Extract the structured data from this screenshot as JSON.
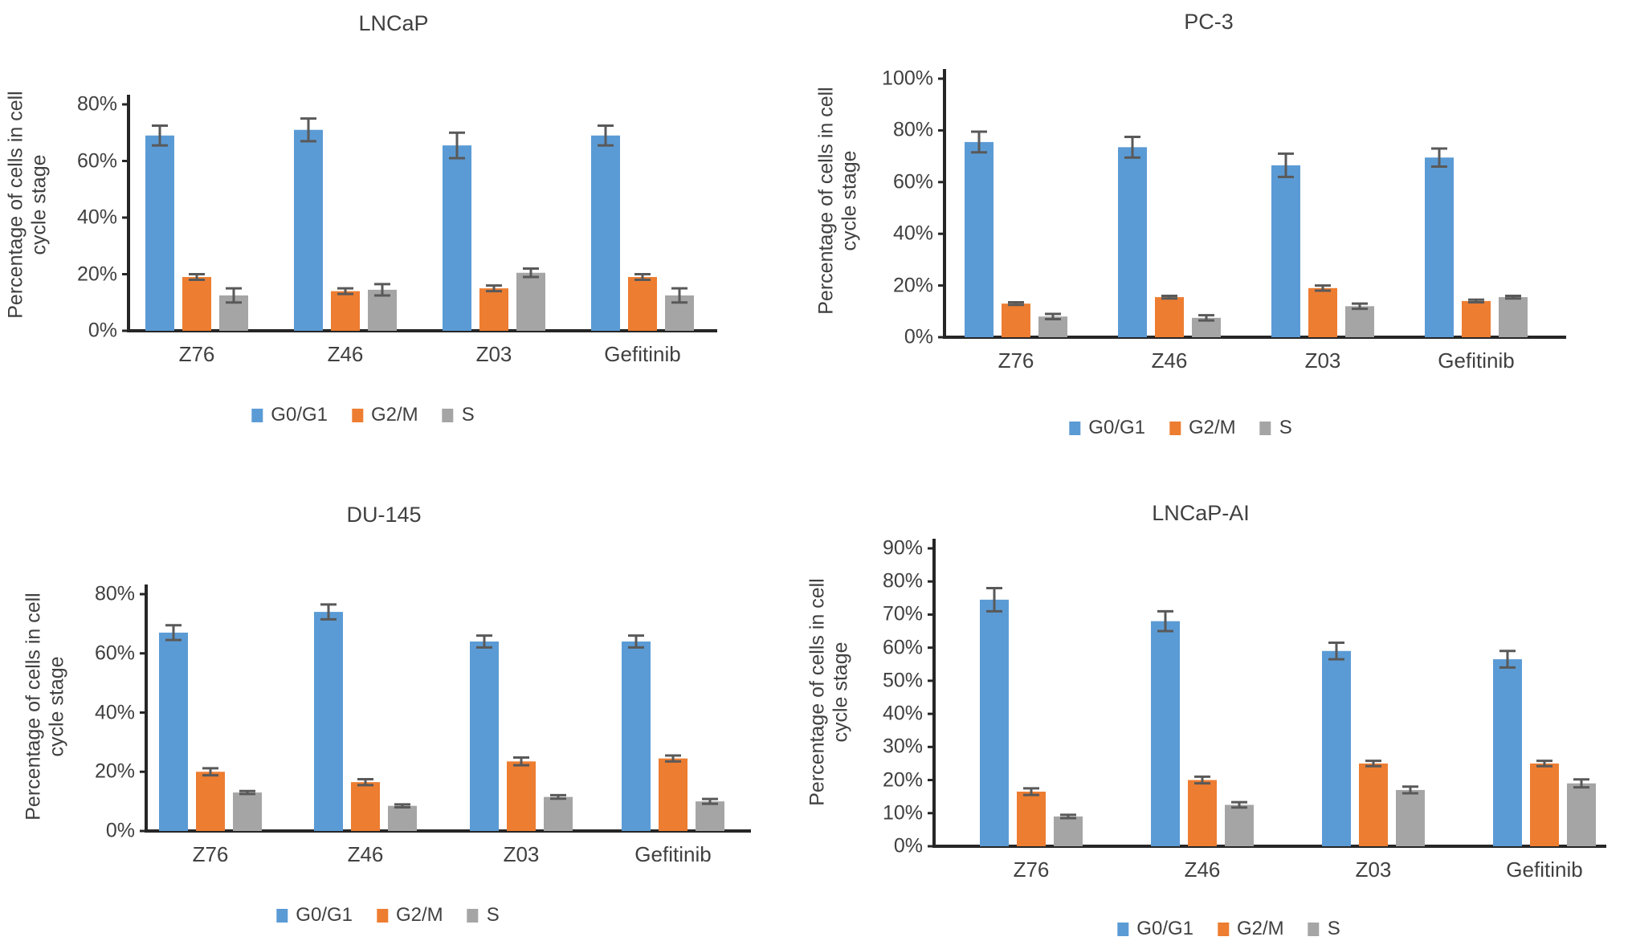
{
  "figure": {
    "y_axis_title_lines": [
      "Percentage of cells in cell",
      "cycle stage"
    ],
    "colors": {
      "g0g1": "#5B9BD5",
      "g2m": "#ED7D31",
      "s": "#A5A5A5",
      "error_bar": "#595959",
      "axis": "#262626"
    }
  },
  "chart_data": [
    {
      "type": "bar",
      "title": "LNCaP",
      "categories": [
        "Z76",
        "Z46",
        "Z03",
        "Gefitinib"
      ],
      "series": [
        {
          "name": "G0/G1",
          "color": "#5B9BD5",
          "values": [
            69,
            71,
            65.5,
            69
          ],
          "errors": [
            3.5,
            4,
            4.5,
            3.5
          ]
        },
        {
          "name": "G2/M",
          "color": "#ED7D31",
          "values": [
            19,
            14,
            15,
            19
          ],
          "errors": [
            1,
            1,
            1,
            1
          ]
        },
        {
          "name": "S",
          "color": "#A5A5A5",
          "values": [
            12.5,
            14.5,
            20.5,
            12.5
          ],
          "errors": [
            2.5,
            2,
            1.5,
            2.5
          ]
        }
      ],
      "ylabel": "Percentage of cells in cell cycle stage",
      "ylabel_lines": [
        "Percentage of cells in cell",
        "cycle stage"
      ],
      "ylim": [
        0,
        80
      ],
      "ytick_step": 20,
      "ytick_labels": [
        "0%",
        "20%",
        "40%",
        "60%",
        "80%"
      ],
      "legend_position": "bottom",
      "grid": false
    },
    {
      "type": "bar",
      "title": "PC-3",
      "categories": [
        "Z76",
        "Z46",
        "Z03",
        "Gefitinib"
      ],
      "series": [
        {
          "name": "G0/G1",
          "color": "#5B9BD5",
          "values": [
            75.5,
            73.5,
            66.5,
            69.5
          ],
          "errors": [
            4,
            4,
            4.5,
            3.5
          ]
        },
        {
          "name": "G2/M",
          "color": "#ED7D31",
          "values": [
            13,
            15.5,
            19,
            14
          ],
          "errors": [
            0.5,
            0.5,
            1,
            0.5
          ]
        },
        {
          "name": "S",
          "color": "#A5A5A5",
          "values": [
            8,
            7.5,
            12,
            15.5
          ],
          "errors": [
            1,
            1,
            1,
            0.5
          ]
        }
      ],
      "ylabel": "Percentage of cells in cell cycle stage",
      "ylabel_lines": [
        "Percentage of cells in cell",
        "cycle stage"
      ],
      "ylim": [
        0,
        100
      ],
      "ytick_step": 20,
      "ytick_labels": [
        "0%",
        "20%",
        "40%",
        "60%",
        "80%",
        "100%"
      ],
      "legend_position": "bottom",
      "grid": false
    },
    {
      "type": "bar",
      "title": "DU-145",
      "categories": [
        "Z76",
        "Z46",
        "Z03",
        "Gefitinib"
      ],
      "series": [
        {
          "name": "G0/G1",
          "color": "#5B9BD5",
          "values": [
            67,
            74,
            64,
            64
          ],
          "errors": [
            2.5,
            2.5,
            2,
            2
          ]
        },
        {
          "name": "G2/M",
          "color": "#ED7D31",
          "values": [
            20,
            16.5,
            23.5,
            24.5
          ],
          "errors": [
            1.2,
            1,
            1.3,
            1
          ]
        },
        {
          "name": "S",
          "color": "#A5A5A5",
          "values": [
            13,
            8.5,
            11.5,
            10
          ],
          "errors": [
            0.5,
            0.5,
            0.6,
            0.8
          ]
        }
      ],
      "ylabel": "Percentage of cells in cell cycle stage",
      "ylabel_lines": [
        "Percentage of cells in cell",
        "cycle stage"
      ],
      "ylim": [
        0,
        80
      ],
      "ytick_step": 20,
      "ytick_labels": [
        "0%",
        "20%",
        "40%",
        "60%",
        "80%"
      ],
      "legend_position": "bottom",
      "grid": false
    },
    {
      "type": "bar",
      "title": "LNCaP-AI",
      "categories": [
        "Z76",
        "Z46",
        "Z03",
        "Gefitinib"
      ],
      "series": [
        {
          "name": "G0/G1",
          "color": "#5B9BD5",
          "values": [
            74.5,
            68,
            59,
            56.5
          ],
          "errors": [
            3.5,
            3,
            2.5,
            2.5
          ]
        },
        {
          "name": "G2/M",
          "color": "#ED7D31",
          "values": [
            16.5,
            20,
            25,
            25
          ],
          "errors": [
            1,
            1,
            0.8,
            0.8
          ]
        },
        {
          "name": "S",
          "color": "#A5A5A5",
          "values": [
            9,
            12.5,
            17,
            19
          ],
          "errors": [
            0.5,
            0.8,
            1,
            1.2
          ]
        }
      ],
      "ylabel": "Percentage of cells in cell cycle stage",
      "ylabel_lines": [
        "Percentage of cells in cell",
        "cycle stage"
      ],
      "ylim": [
        0,
        90
      ],
      "ytick_step": 10,
      "ytick_labels": [
        "0%",
        "10%",
        "20%",
        "30%",
        "40%",
        "50%",
        "60%",
        "70%",
        "80%",
        "90%"
      ],
      "legend_position": "bottom",
      "grid": false
    }
  ]
}
